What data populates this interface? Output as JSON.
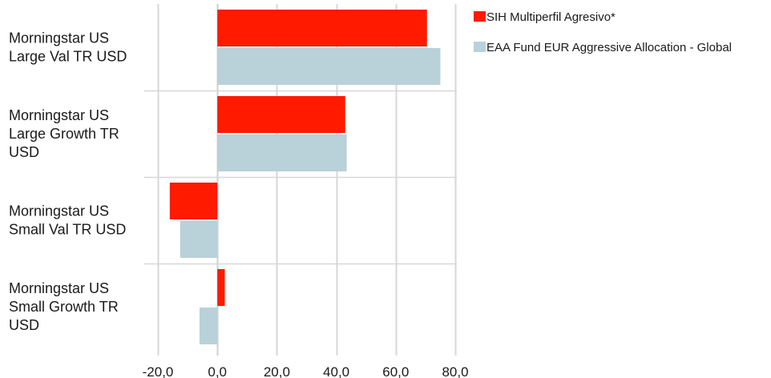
{
  "chart_data": {
    "type": "bar",
    "orientation": "horizontal",
    "categories": [
      [
        "Morningstar US",
        "Large Val TR USD"
      ],
      [
        "Morningstar US",
        "Large Growth TR",
        "USD"
      ],
      [
        "Morningstar US",
        "Small Val TR USD"
      ],
      [
        "Morningstar US",
        "Small Growth TR",
        "USD"
      ]
    ],
    "series": [
      {
        "name": "SIH Multiperfil Agresivo*",
        "color": "#ff1a00",
        "values": [
          70.5,
          43.0,
          -16.0,
          2.5
        ]
      },
      {
        "name": "EAA Fund EUR Aggressive Allocation - Global",
        "color": "#b9d1d9",
        "values": [
          75.0,
          43.5,
          -12.5,
          -6.0
        ]
      }
    ],
    "xlim": [
      -20,
      80
    ],
    "xticks": [
      -20,
      0,
      20,
      40,
      60,
      80
    ],
    "xtick_labels": [
      "-20,0",
      "0,0",
      "20,0",
      "40,0",
      "60,0",
      "80,0"
    ],
    "grid": true,
    "legend_position": "top-right"
  }
}
